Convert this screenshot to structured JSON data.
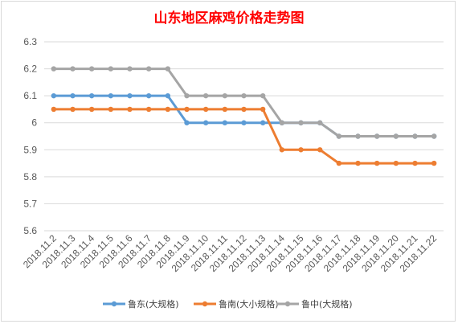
{
  "chart_data": {
    "type": "line",
    "title": "山东地区麻鸡价格走势图",
    "title_color": "#ff0000",
    "categories": [
      "2018.11.2",
      "2018.11.3",
      "2018.11.4",
      "2018.11.5",
      "2018.11.6",
      "2018.11.7",
      "2018.11.8",
      "2018.11.9",
      "2018.11.10",
      "2018.11.11",
      "2018.11.12",
      "2018.11.13",
      "2018.11.14",
      "2018.11.15",
      "2018.11.16",
      "2018.11.17",
      "2018.11.18",
      "2018.11.19",
      "2018.11.20",
      "2018.11.21",
      "2018.11.22"
    ],
    "y_ticks": [
      "6.3",
      "6.2",
      "6.1",
      "6",
      "5.9",
      "5.8",
      "5.7",
      "5.6"
    ],
    "ylim": [
      5.6,
      6.3
    ],
    "grid": true,
    "legend_position": "bottom",
    "series": [
      {
        "name": "鲁东(大规格)",
        "color": "#5b9bd5",
        "values": [
          6.1,
          6.1,
          6.1,
          6.1,
          6.1,
          6.1,
          6.1,
          6.0,
          6.0,
          6.0,
          6.0,
          6.0,
          6.0,
          6.0,
          6.0,
          5.95,
          5.95,
          5.95,
          5.95,
          5.95,
          5.95
        ]
      },
      {
        "name": "鲁南(大小规格)",
        "color": "#ed7d31",
        "values": [
          6.05,
          6.05,
          6.05,
          6.05,
          6.05,
          6.05,
          6.05,
          6.05,
          6.05,
          6.05,
          6.05,
          6.05,
          5.9,
          5.9,
          5.9,
          5.85,
          5.85,
          5.85,
          5.85,
          5.85,
          5.85
        ]
      },
      {
        "name": "鲁中(大规格)",
        "color": "#a5a5a5",
        "values": [
          6.2,
          6.2,
          6.2,
          6.2,
          6.2,
          6.2,
          6.2,
          6.1,
          6.1,
          6.1,
          6.1,
          6.1,
          6.0,
          6.0,
          6.0,
          5.95,
          5.95,
          5.95,
          5.95,
          5.95,
          5.95
        ]
      }
    ]
  }
}
